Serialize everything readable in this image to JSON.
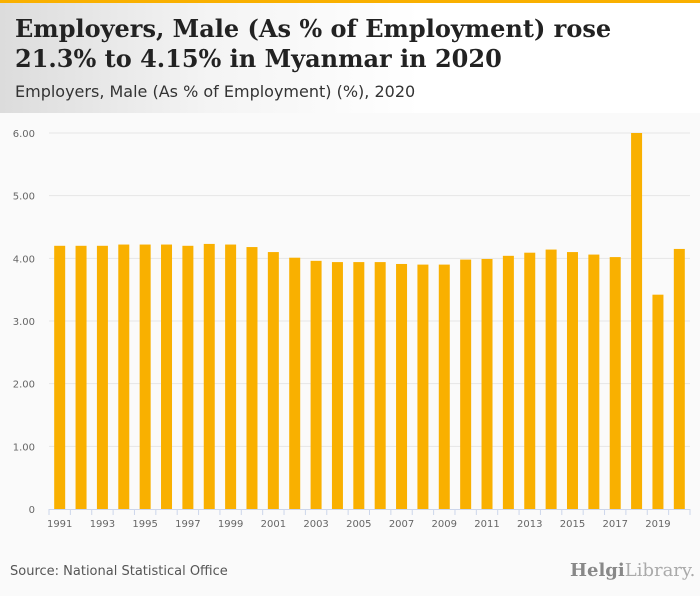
{
  "header": {
    "title": "Employers, Male (As % of Employment) rose 21.3% to 4.15% in Myanmar in 2020",
    "subtitle": "Employers, Male (As % of Employment) (%), 2020"
  },
  "footer": {
    "source": "Source: National Statistical Office",
    "logo_a": "Helgi",
    "logo_b": "Library."
  },
  "colors": {
    "bar": "#f9b000",
    "grid": "#e6e6e6",
    "axis": "#ccd6eb"
  },
  "chart_data": {
    "type": "bar",
    "title": "Employers, Male (As % of Employment) (%), 2020",
    "categories": [
      1991,
      1992,
      1993,
      1994,
      1995,
      1996,
      1997,
      1998,
      1999,
      2000,
      2001,
      2002,
      2003,
      2004,
      2005,
      2006,
      2007,
      2008,
      2009,
      2010,
      2011,
      2012,
      2013,
      2014,
      2015,
      2016,
      2017,
      2018,
      2019,
      2020
    ],
    "values": [
      4.2,
      4.2,
      4.2,
      4.22,
      4.22,
      4.22,
      4.2,
      4.23,
      4.22,
      4.18,
      4.1,
      4.01,
      3.96,
      3.94,
      3.94,
      3.94,
      3.91,
      3.9,
      3.9,
      3.98,
      3.99,
      4.04,
      4.09,
      4.14,
      4.1,
      4.06,
      4.02,
      6.0,
      3.42,
      4.15
    ],
    "ylim": [
      0,
      6
    ],
    "yticks": [
      "0",
      "1.00",
      "2.00",
      "3.00",
      "4.00",
      "5.00",
      "6.00"
    ],
    "xticks": [
      "1991",
      "1993",
      "1995",
      "1997",
      "1999",
      "2001",
      "2003",
      "2005",
      "2007",
      "2009",
      "2011",
      "2013",
      "2015",
      "2017",
      "2019"
    ],
    "xlabel": "",
    "ylabel": "",
    "grid": true,
    "legend": "none"
  }
}
